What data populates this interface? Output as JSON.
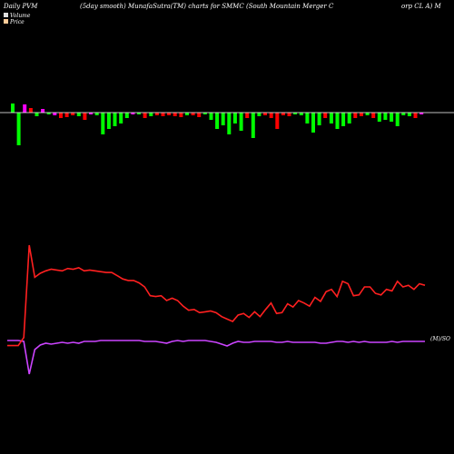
{
  "header": {
    "left": "Daily PVM",
    "mid1": "(5day smooth) MunafaSutra(TM) charts for SMMC",
    "mid2": "(South Mountain Merger C",
    "right": "orp CL A) M"
  },
  "legend": {
    "volume": "Volume",
    "price": "Price"
  },
  "colors": {
    "background": "#000000",
    "baseline": "#ffffff",
    "up": "#00ff00",
    "down": "#ff0000",
    "neutral": "#ff00ff",
    "price": "#ff2020",
    "avg": "#cc44ff",
    "legend_volume": "#dddddd",
    "legend_price": "#ffcc99"
  },
  "chart_data": {
    "type": "bar",
    "volume": {
      "bars": [
        {
          "v": 10,
          "c": "up"
        },
        {
          "v": -36,
          "c": "up"
        },
        {
          "v": 9,
          "c": "neutral"
        },
        {
          "v": 5,
          "c": "down"
        },
        {
          "v": -4,
          "c": "up"
        },
        {
          "v": 4,
          "c": "neutral"
        },
        {
          "v": -2,
          "c": "up"
        },
        {
          "v": -3,
          "c": "neutral"
        },
        {
          "v": -6,
          "c": "down"
        },
        {
          "v": -5,
          "c": "down"
        },
        {
          "v": -3,
          "c": "down"
        },
        {
          "v": -4,
          "c": "up"
        },
        {
          "v": -8,
          "c": "down"
        },
        {
          "v": -2,
          "c": "neutral"
        },
        {
          "v": -3,
          "c": "up"
        },
        {
          "v": -24,
          "c": "up"
        },
        {
          "v": -18,
          "c": "up"
        },
        {
          "v": -15,
          "c": "up"
        },
        {
          "v": -12,
          "c": "up"
        },
        {
          "v": -6,
          "c": "up"
        },
        {
          "v": -2,
          "c": "neutral"
        },
        {
          "v": -2,
          "c": "up"
        },
        {
          "v": -6,
          "c": "down"
        },
        {
          "v": -4,
          "c": "up"
        },
        {
          "v": -3,
          "c": "down"
        },
        {
          "v": -4,
          "c": "down"
        },
        {
          "v": -3,
          "c": "down"
        },
        {
          "v": -4,
          "c": "down"
        },
        {
          "v": -5,
          "c": "down"
        },
        {
          "v": -3,
          "c": "up"
        },
        {
          "v": -3,
          "c": "down"
        },
        {
          "v": -5,
          "c": "down"
        },
        {
          "v": -2,
          "c": "up"
        },
        {
          "v": -8,
          "c": "up"
        },
        {
          "v": -18,
          "c": "up"
        },
        {
          "v": -14,
          "c": "up"
        },
        {
          "v": -24,
          "c": "up"
        },
        {
          "v": -12,
          "c": "up"
        },
        {
          "v": -20,
          "c": "up"
        },
        {
          "v": -6,
          "c": "down"
        },
        {
          "v": -28,
          "c": "up"
        },
        {
          "v": -4,
          "c": "up"
        },
        {
          "v": -3,
          "c": "down"
        },
        {
          "v": -6,
          "c": "down"
        },
        {
          "v": -18,
          "c": "down"
        },
        {
          "v": -3,
          "c": "down"
        },
        {
          "v": -4,
          "c": "down"
        },
        {
          "v": -2,
          "c": "up"
        },
        {
          "v": -3,
          "c": "up"
        },
        {
          "v": -12,
          "c": "up"
        },
        {
          "v": -22,
          "c": "up"
        },
        {
          "v": -14,
          "c": "up"
        },
        {
          "v": -6,
          "c": "down"
        },
        {
          "v": -12,
          "c": "up"
        },
        {
          "v": -18,
          "c": "up"
        },
        {
          "v": -15,
          "c": "up"
        },
        {
          "v": -12,
          "c": "up"
        },
        {
          "v": -6,
          "c": "down"
        },
        {
          "v": -4,
          "c": "down"
        },
        {
          "v": -3,
          "c": "up"
        },
        {
          "v": -6,
          "c": "down"
        },
        {
          "v": -10,
          "c": "up"
        },
        {
          "v": -8,
          "c": "up"
        },
        {
          "v": -10,
          "c": "up"
        },
        {
          "v": -15,
          "c": "up"
        },
        {
          "v": -3,
          "c": "up"
        },
        {
          "v": -4,
          "c": "up"
        },
        {
          "v": -6,
          "c": "down"
        },
        {
          "v": -2,
          "c": "neutral"
        }
      ]
    },
    "price": [
      375,
      375,
      375,
      385,
      500,
      460,
      465,
      468,
      470,
      469,
      468,
      471,
      470,
      472,
      468,
      469,
      468,
      467,
      466,
      466,
      462,
      458,
      456,
      456,
      453,
      448,
      437,
      436,
      437,
      431,
      434,
      431,
      424,
      419,
      420,
      416,
      417,
      418,
      416,
      411,
      408,
      405,
      413,
      415,
      410,
      417,
      411,
      420,
      428,
      415,
      416,
      427,
      423,
      431,
      428,
      424,
      435,
      430,
      442,
      445,
      436,
      455,
      452,
      437,
      438,
      448,
      448,
      440,
      438,
      445,
      443,
      455,
      448,
      450,
      445,
      452,
      450
    ],
    "price_label": "(M)/SO"
  }
}
